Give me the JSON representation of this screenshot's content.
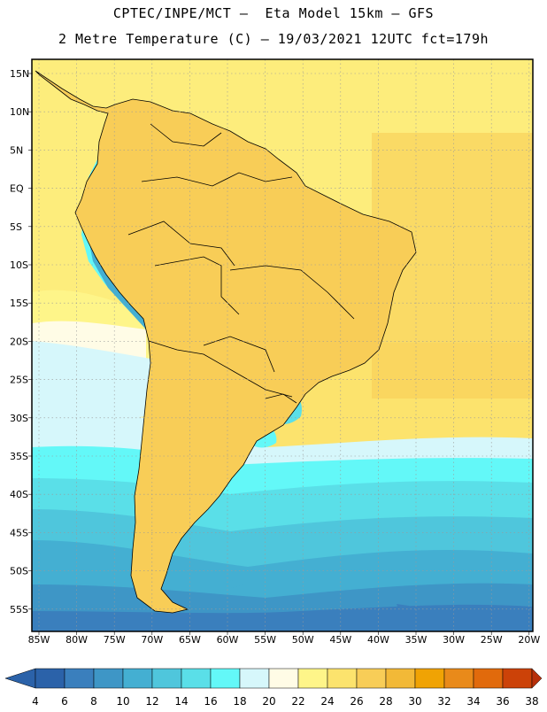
{
  "header": {
    "line1": "CPTEC/INPE/MCT –  Eta Model 15km – GFS",
    "line2": "2 Metre Temperature (C) – 19/03/2021 12UTC fct=179h"
  },
  "map": {
    "lat_labels": [
      "15N",
      "10N",
      "5N",
      "EQ",
      "5S",
      "10S",
      "15S",
      "20S",
      "25S",
      "30S",
      "35S",
      "40S",
      "45S",
      "50S",
      "55S"
    ],
    "lon_labels": [
      "85W",
      "80W",
      "75W",
      "70W",
      "65W",
      "60W",
      "55W",
      "50W",
      "45W",
      "40W",
      "35W",
      "30W",
      "25W",
      "20W"
    ]
  },
  "legend": {
    "values": [
      "4",
      "6",
      "8",
      "10",
      "12",
      "14",
      "16",
      "18",
      "20",
      "22",
      "24",
      "26",
      "28",
      "30",
      "32",
      "34",
      "36",
      "38"
    ],
    "colors": [
      "#2b62a9",
      "#3a7fbd",
      "#3e96c6",
      "#44afd2",
      "#4fc6dc",
      "#5adfe8",
      "#63f8f8",
      "#d6f7fb",
      "#fffce6",
      "#fef589",
      "#fce36d",
      "#f8cd57",
      "#f2b937",
      "#f0a304",
      "#e98a1a",
      "#e16a0c",
      "#cc4208",
      "#b7300b"
    ]
  }
}
